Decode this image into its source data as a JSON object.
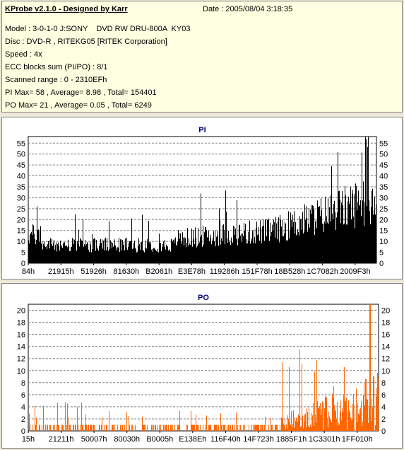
{
  "header": {
    "title": "KProbe v2.1.0 - Designed by Karr",
    "date": "Date : 2005/08/04 3:18:35",
    "lines": [
      "Model : 3-0-1-0 J:SONY    DVD RW DRU-800A  KY03",
      "Disc : DVD-R , RITEKG05 [RITEK Corporation]",
      "Speed : 4x",
      "ECC blocks sum (PI/PO) : 8/1",
      "Scanned range : 0 - 2310EFh",
      "PI Max= 58 , Average= 8.98 , Total= 154401",
      "PO Max= 21 , Average= 0.05 , Total= 6249"
    ]
  },
  "chart_data": [
    {
      "type": "bar",
      "title": "PI",
      "ylim": [
        0,
        58
      ],
      "yticks": [
        0,
        5,
        10,
        15,
        20,
        25,
        30,
        35,
        40,
        45,
        50,
        55
      ],
      "xtick_labels": [
        "84h",
        "21915h",
        "51926h",
        "81630h",
        "B2061h",
        "E3E78h",
        "119286h",
        "151F78h",
        "18B528h",
        "1C7082h",
        "2009F3h"
      ],
      "grid": true,
      "bar_color": "#000000",
      "max": 58,
      "average": 8.98
    },
    {
      "type": "bar",
      "title": "PO",
      "ylim": [
        0,
        21
      ],
      "yticks": [
        0,
        2,
        4,
        6,
        8,
        10,
        12,
        14,
        16,
        18,
        20
      ],
      "xtick_labels": [
        "15h",
        "21211h",
        "50007h",
        "80030h",
        "B0005h",
        "E138Eh",
        "116F40h",
        "14F723h",
        "1885F1h",
        "1C3301h",
        "1FF010h"
      ],
      "grid": true,
      "bar_color": "#ff6600",
      "max": 21,
      "average": 0.05
    }
  ]
}
